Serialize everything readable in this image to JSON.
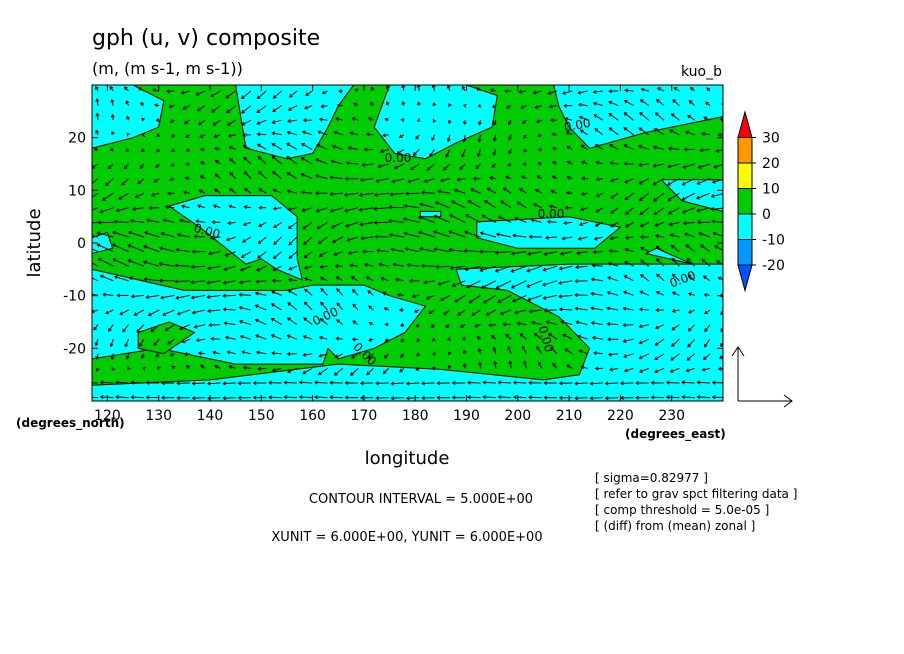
{
  "chart_data": {
    "type": "heatmap",
    "title": "gph (u, v) composite",
    "subtitle": "(m, (m s-1, m s-1))",
    "run_label": "kuo_b",
    "xlabel": "longitude",
    "ylabel": "latitude",
    "x_units": "(degrees_east)",
    "y_units": "(degrees_north)",
    "xlim": [
      117,
      240
    ],
    "ylim": [
      -30,
      30
    ],
    "x_ticks": [
      120,
      130,
      140,
      150,
      160,
      170,
      180,
      190,
      200,
      210,
      220,
      230
    ],
    "y_ticks": [
      20,
      10,
      0,
      -10,
      -20
    ],
    "colorbar": {
      "levels": [
        "30",
        "20",
        "10",
        "0",
        "-10",
        "-20"
      ],
      "colors": [
        "#ff0000",
        "#ff9900",
        "#ffff00",
        "#00cc00",
        "#00ffff",
        "#0099ff",
        "#0055ff"
      ]
    },
    "positive_fill": "#00cc00",
    "negative_fill": "#00ffff",
    "contour_labels": [
      "0.00",
      "0.00",
      "0.00",
      "0.00",
      "0.00",
      "0.00",
      "0.00",
      "0.00",
      "0.00"
    ],
    "negative_regions": [
      [
        [
          117,
          30
        ],
        [
          125,
          30
        ],
        [
          131,
          27
        ],
        [
          130,
          22
        ],
        [
          125,
          20
        ],
        [
          117,
          18
        ]
      ],
      [
        [
          145,
          30
        ],
        [
          168,
          30
        ],
        [
          165,
          26
        ],
        [
          163,
          22
        ],
        [
          160,
          17
        ],
        [
          155,
          16
        ],
        [
          147,
          18
        ]
      ],
      [
        [
          175,
          30
        ],
        [
          190,
          30
        ],
        [
          196,
          28
        ],
        [
          195,
          22
        ],
        [
          188,
          19
        ],
        [
          182,
          16
        ],
        [
          176,
          17
        ],
        [
          172,
          22
        ]
      ],
      [
        [
          207,
          30
        ],
        [
          240,
          30
        ],
        [
          240,
          24
        ],
        [
          225,
          21
        ],
        [
          214,
          18
        ],
        [
          210,
          22
        ],
        [
          208,
          26
        ]
      ],
      [
        [
          228,
          12
        ],
        [
          240,
          12
        ],
        [
          240,
          6
        ],
        [
          232,
          8
        ]
      ],
      [
        [
          139,
          9
        ],
        [
          152,
          9
        ],
        [
          157,
          5
        ],
        [
          157,
          -3
        ],
        [
          158,
          -7
        ],
        [
          153,
          -5
        ],
        [
          150,
          -3
        ],
        [
          147,
          -4
        ],
        [
          138,
          3
        ],
        [
          132,
          7
        ]
      ],
      [
        [
          117,
          1
        ],
        [
          120,
          2
        ],
        [
          121,
          -1
        ],
        [
          117,
          -2
        ]
      ],
      [
        [
          181,
          6
        ],
        [
          185,
          6
        ],
        [
          185,
          5
        ],
        [
          181,
          5
        ]
      ],
      [
        [
          192,
          4
        ],
        [
          210,
          5
        ],
        [
          220,
          3
        ],
        [
          215,
          -1
        ],
        [
          200,
          -1
        ],
        [
          192,
          1
        ]
      ],
      [
        [
          227,
          -1
        ],
        [
          234,
          -4
        ],
        [
          225,
          -2
        ]
      ],
      [
        [
          117,
          -5
        ],
        [
          135,
          -9
        ],
        [
          155,
          -9
        ],
        [
          160,
          -8
        ],
        [
          170,
          -8
        ],
        [
          175,
          -10
        ],
        [
          182,
          -12
        ],
        [
          178,
          -17
        ],
        [
          172,
          -20
        ],
        [
          165,
          -22
        ],
        [
          163,
          -20
        ],
        [
          162,
          -23
        ],
        [
          145,
          -23
        ],
        [
          130,
          -20
        ],
        [
          117,
          -22
        ]
      ],
      [
        [
          188,
          -5
        ],
        [
          210,
          -4
        ],
        [
          240,
          -4
        ],
        [
          240,
          -30
        ],
        [
          117,
          -30
        ],
        [
          117,
          -27
        ],
        [
          140,
          -26
        ],
        [
          165,
          -23
        ],
        [
          185,
          -24
        ],
        [
          205,
          -26
        ],
        [
          212,
          -25
        ],
        [
          214,
          -20
        ],
        [
          208,
          -14
        ],
        [
          198,
          -9
        ],
        [
          189,
          -8
        ]
      ]
    ],
    "positive_islands": [
      [
        [
          126,
          -17
        ],
        [
          132,
          -15
        ],
        [
          137,
          -17
        ],
        [
          131,
          -21
        ],
        [
          126,
          -20
        ]
      ]
    ],
    "vector_reference": {
      "xunit": 6.0,
      "yunit": 6.0
    }
  },
  "footer": {
    "contour_interval": "CONTOUR INTERVAL = 5.000E+00",
    "units": "XUNIT = 6.000E+00, YUNIT = 6.000E+00",
    "notes": [
      "[ sigma=0.82977 ]",
      "[ refer to grav spct filtering data ]",
      "[ comp threshold = 5.0e-05 ]",
      "[ (diff) from (mean) zonal ]"
    ]
  }
}
